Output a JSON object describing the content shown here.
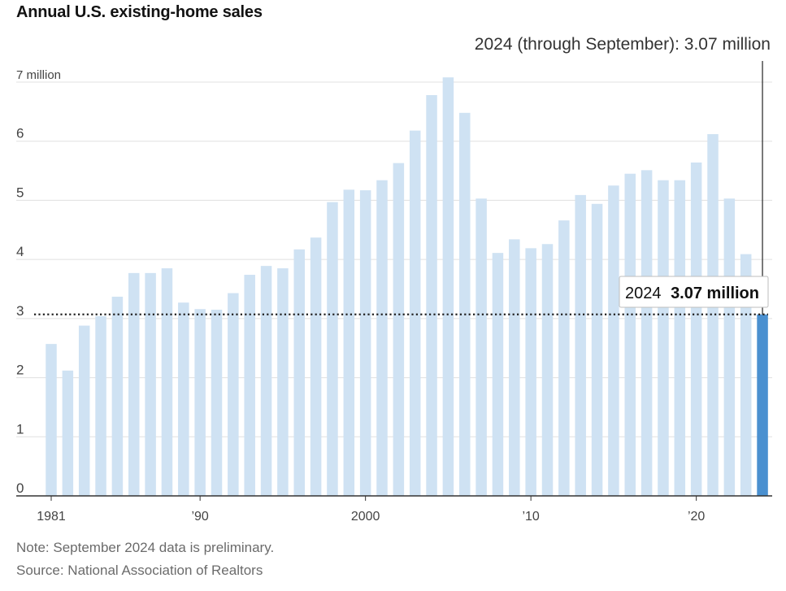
{
  "title": "Annual U.S. existing-home sales",
  "note": "Note: September 2024 data is preliminary.",
  "source": "Source: National Association of Realtors",
  "colors": {
    "bar": "#cfe2f3",
    "highlight_bar": "#4a90d0",
    "grid": "#e0e0e0",
    "axis": "#333333",
    "label": "#444444"
  },
  "chart_data": {
    "type": "bar",
    "title": "Annual U.S. existing-home sales",
    "xlabel": "",
    "ylabel": "",
    "ylim": [
      0,
      7
    ],
    "y_ticks": [
      {
        "value": 0,
        "label": "0"
      },
      {
        "value": 1,
        "label": "1"
      },
      {
        "value": 2,
        "label": "2"
      },
      {
        "value": 3,
        "label": "3"
      },
      {
        "value": 4,
        "label": "4"
      },
      {
        "value": 5,
        "label": "5"
      },
      {
        "value": 6,
        "label": "6"
      },
      {
        "value": 7,
        "label": "7 million"
      }
    ],
    "x_ticks": [
      {
        "year": 1981,
        "label": "1981"
      },
      {
        "year": 1990,
        "label": "’90"
      },
      {
        "year": 2000,
        "label": "2000"
      },
      {
        "year": 2010,
        "label": "’10"
      },
      {
        "year": 2020,
        "label": "’20"
      }
    ],
    "grid": true,
    "categories": [
      1981,
      1982,
      1983,
      1984,
      1985,
      1986,
      1987,
      1988,
      1989,
      1990,
      1991,
      1992,
      1993,
      1994,
      1995,
      1996,
      1997,
      1998,
      1999,
      2000,
      2001,
      2002,
      2003,
      2004,
      2005,
      2006,
      2007,
      2008,
      2009,
      2010,
      2011,
      2012,
      2013,
      2014,
      2015,
      2016,
      2017,
      2018,
      2019,
      2020,
      2021,
      2022,
      2023,
      2024
    ],
    "values": [
      2.57,
      2.12,
      2.88,
      3.04,
      3.37,
      3.77,
      3.77,
      3.85,
      3.27,
      3.16,
      3.15,
      3.43,
      3.74,
      3.89,
      3.85,
      4.17,
      4.37,
      4.97,
      5.18,
      5.17,
      5.34,
      5.63,
      6.18,
      6.78,
      7.08,
      6.48,
      5.03,
      4.11,
      4.34,
      4.19,
      4.26,
      4.66,
      5.09,
      4.94,
      5.25,
      5.45,
      5.51,
      5.34,
      5.34,
      5.64,
      6.12,
      5.03,
      4.09,
      3.07
    ],
    "highlight": {
      "year": 2024,
      "value": 3.07
    },
    "reference_line_value": 3.07,
    "annotation_top": "2024 (through September): 3.07 million",
    "callout_year": "2024",
    "callout_value": "3.07 million"
  }
}
